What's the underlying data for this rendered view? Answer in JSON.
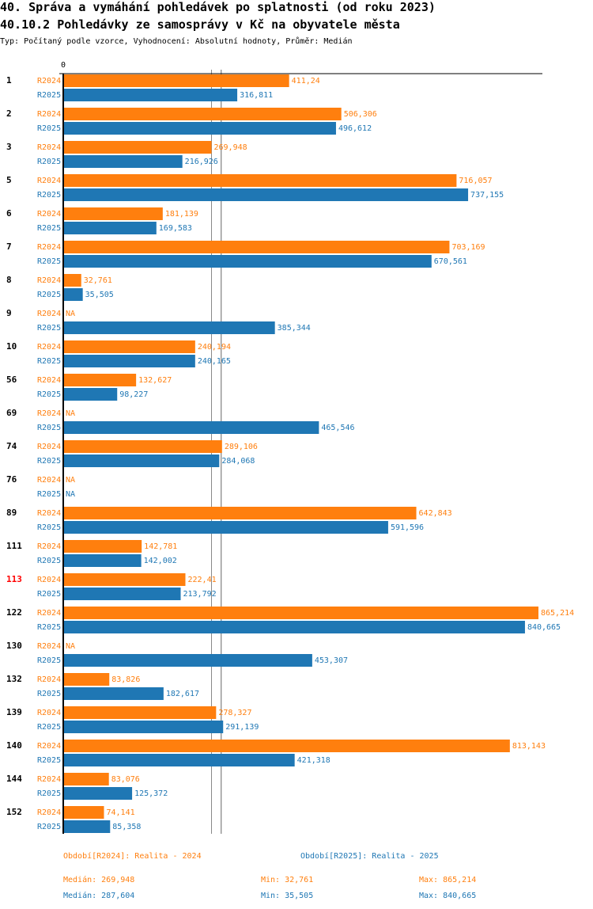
{
  "title": "40. Správa a vymáhání pohledávek po splatnosti (od roku 2023)",
  "subtitle": "40.10.2 Pohledávky ze samosprávy v Kč na obyvatele města",
  "info": "Typ: Počítaný podle vzorce, Vyhodnocení: Absolutní hodnoty, Průměr: Medián",
  "colors": {
    "R2024": "#ff7f0e",
    "R2025": "#1f77b4",
    "highlight": "#ff0000",
    "text": "#000000"
  },
  "chart_data": {
    "type": "bar",
    "orientation": "horizontal",
    "x_tick_label": "0",
    "xlim": [
      0,
      865.214
    ],
    "highlight_category": "113",
    "categories": [
      "1",
      "2",
      "3",
      "5",
      "6",
      "7",
      "8",
      "9",
      "10",
      "56",
      "69",
      "74",
      "76",
      "89",
      "111",
      "113",
      "122",
      "130",
      "132",
      "139",
      "140",
      "144",
      "152"
    ],
    "series": [
      {
        "name": "R2024",
        "values": [
          411.24,
          506.306,
          269.948,
          716.057,
          181.139,
          703.169,
          32.761,
          null,
          240.194,
          132.627,
          null,
          289.106,
          null,
          642.843,
          142.781,
          222.41,
          865.214,
          null,
          83.826,
          278.327,
          813.143,
          83.076,
          74.141
        ],
        "labels": [
          "411,24",
          "506,306",
          "269,948",
          "716,057",
          "181,139",
          "703,169",
          "32,761",
          "NA",
          "240,194",
          "132,627",
          "NA",
          "289,106",
          "NA",
          "642,843",
          "142,781",
          "222,41",
          "865,214",
          "NA",
          "83,826",
          "278,327",
          "813,143",
          "83,076",
          "74,141"
        ]
      },
      {
        "name": "R2025",
        "values": [
          316.811,
          496.612,
          216.926,
          737.155,
          169.583,
          670.561,
          35.505,
          385.344,
          240.165,
          98.227,
          465.546,
          284.068,
          null,
          591.596,
          142.002,
          213.792,
          840.665,
          453.307,
          182.617,
          291.139,
          421.318,
          125.372,
          85.358
        ],
        "labels": [
          "316,811",
          "496,612",
          "216,926",
          "737,155",
          "169,583",
          "670,561",
          "35,505",
          "385,344",
          "240,165",
          "98,227",
          "465,546",
          "284,068",
          "NA",
          "591,596",
          "142,002",
          "213,792",
          "840,665",
          "453,307",
          "182,617",
          "291,139",
          "421,318",
          "125,372",
          "85,358"
        ]
      }
    ],
    "medians": {
      "R2024": 269.948,
      "R2025": 287.604
    }
  },
  "legend": {
    "R2024": "Období[R2024]: Realita - 2024",
    "R2025": "Období[R2025]: Realita - 2025"
  },
  "stats": {
    "R2024": {
      "median": "Medián: 269,948",
      "min": "Min: 32,761",
      "max": "Max: 865,214"
    },
    "R2025": {
      "median": "Medián: 287,604",
      "min": "Min: 35,505",
      "max": "Max: 840,665"
    }
  }
}
